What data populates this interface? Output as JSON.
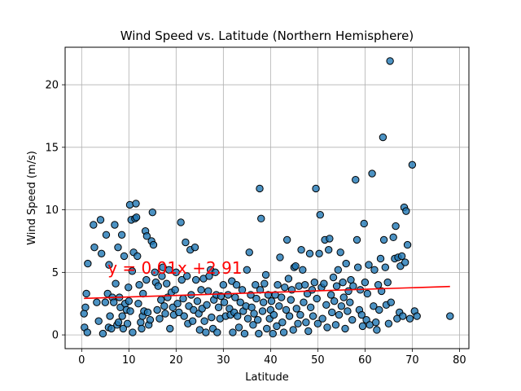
{
  "chart_data": {
    "type": "scatter",
    "title": "Wind Speed vs. Latitude (Northern Hemisphere)",
    "xlabel": "Latitude",
    "ylabel": "Wind Speed (m/s)",
    "xlim": [
      -3.5,
      82
    ],
    "ylim": [
      -1.1,
      23.0
    ],
    "xticks": [
      0,
      10,
      20,
      30,
      40,
      50,
      60,
      70,
      80
    ],
    "yticks": [
      0,
      5,
      10,
      15,
      20
    ],
    "grid": true,
    "point_color": "#1f77b4",
    "point_edge_color": "#000000",
    "regression": {
      "label": "y = 0.01x +2.91",
      "slope": 0.0123,
      "intercept": 2.91,
      "x_range": [
        0.5,
        78
      ],
      "color": "#ff0000",
      "label_anchor": [
        5.5,
        4.9
      ]
    },
    "points": [
      [
        0.5,
        1.7
      ],
      [
        0.6,
        0.6
      ],
      [
        0.8,
        2.2
      ],
      [
        1.0,
        3.3
      ],
      [
        1.2,
        0.2
      ],
      [
        1.3,
        5.7
      ],
      [
        2.5,
        8.8
      ],
      [
        2.7,
        7.0
      ],
      [
        3.2,
        2.6
      ],
      [
        3.6,
        1.1
      ],
      [
        4.0,
        9.2
      ],
      [
        4.2,
        6.5
      ],
      [
        4.5,
        0.1
      ],
      [
        5.0,
        2.6
      ],
      [
        5.2,
        8.0
      ],
      [
        5.5,
        3.3
      ],
      [
        5.7,
        0.6
      ],
      [
        5.8,
        5.6
      ],
      [
        6.0,
        1.5
      ],
      [
        6.3,
        0.5
      ],
      [
        6.5,
        3.0
      ],
      [
        6.8,
        2.6
      ],
      [
        7.0,
        8.8
      ],
      [
        7.2,
        4.1
      ],
      [
        7.5,
        0.8
      ],
      [
        7.7,
        7.0
      ],
      [
        7.8,
        1.0
      ],
      [
        8.0,
        3.0
      ],
      [
        8.2,
        2.2
      ],
      [
        8.5,
        8.0
      ],
      [
        8.6,
        1.5
      ],
      [
        8.8,
        0.5
      ],
      [
        9.0,
        6.3
      ],
      [
        9.2,
        2.5
      ],
      [
        9.5,
        2.0
      ],
      [
        9.7,
        0.9
      ],
      [
        9.9,
        3.8
      ],
      [
        10.0,
        2.7
      ],
      [
        10.2,
        10.4
      ],
      [
        10.3,
        1.9
      ],
      [
        10.5,
        9.2
      ],
      [
        10.7,
        5.1
      ],
      [
        10.8,
        0.2
      ],
      [
        11.0,
        6.6
      ],
      [
        11.3,
        9.3
      ],
      [
        11.5,
        10.5
      ],
      [
        11.6,
        9.4
      ],
      [
        11.8,
        6.3
      ],
      [
        12.0,
        2.5
      ],
      [
        12.2,
        4.0
      ],
      [
        12.5,
        1.0
      ],
      [
        12.7,
        0.5
      ],
      [
        12.9,
        1.5
      ],
      [
        13.0,
        3.3
      ],
      [
        13.2,
        1.9
      ],
      [
        13.5,
        8.3
      ],
      [
        13.7,
        4.4
      ],
      [
        13.8,
        7.9
      ],
      [
        14.0,
        1.8
      ],
      [
        14.2,
        0.8
      ],
      [
        14.5,
        1.2
      ],
      [
        14.8,
        7.5
      ],
      [
        15.0,
        9.8
      ],
      [
        15.2,
        7.2
      ],
      [
        15.5,
        5.0
      ],
      [
        15.7,
        4.2
      ],
      [
        16.0,
        2.0
      ],
      [
        16.2,
        3.9
      ],
      [
        16.5,
        1.3
      ],
      [
        16.8,
        2.8
      ],
      [
        17.0,
        4.7
      ],
      [
        17.2,
        5.4
      ],
      [
        17.5,
        2.3
      ],
      [
        17.7,
        1.7
      ],
      [
        18.0,
        4.1
      ],
      [
        18.2,
        3.0
      ],
      [
        18.5,
        5.2
      ],
      [
        18.7,
        0.5
      ],
      [
        19.0,
        3.4
      ],
      [
        19.3,
        2.2
      ],
      [
        19.5,
        1.6
      ],
      [
        19.8,
        3.6
      ],
      [
        20.0,
        5.0
      ],
      [
        20.3,
        2.5
      ],
      [
        20.6,
        1.8
      ],
      [
        21.0,
        9.0
      ],
      [
        21.2,
        4.4
      ],
      [
        21.5,
        2.9
      ],
      [
        21.7,
        1.5
      ],
      [
        22.0,
        7.4
      ],
      [
        22.3,
        4.7
      ],
      [
        22.5,
        0.9
      ],
      [
        22.7,
        2.3
      ],
      [
        23.0,
        6.8
      ],
      [
        23.2,
        3.2
      ],
      [
        23.5,
        1.1
      ],
      [
        23.7,
        2.0
      ],
      [
        24.0,
        7.0
      ],
      [
        24.2,
        4.4
      ],
      [
        24.5,
        2.7
      ],
      [
        24.8,
        1.7
      ],
      [
        25.0,
        0.4
      ],
      [
        25.3,
        3.6
      ],
      [
        25.5,
        2.1
      ],
      [
        25.8,
        4.5
      ],
      [
        26.0,
        1.1
      ],
      [
        26.3,
        0.2
      ],
      [
        26.5,
        2.4
      ],
      [
        26.8,
        3.5
      ],
      [
        27.0,
        4.7
      ],
      [
        27.3,
        5.2
      ],
      [
        27.5,
        1.4
      ],
      [
        27.8,
        0.5
      ],
      [
        28.0,
        2.8
      ],
      [
        28.3,
        5.0
      ],
      [
        28.5,
        3.2
      ],
      [
        28.7,
        0.2
      ],
      [
        29.0,
        2.2
      ],
      [
        29.3,
        1.3
      ],
      [
        29.5,
        3.1
      ],
      [
        30.0,
        4.0
      ],
      [
        30.2,
        2.6
      ],
      [
        30.5,
        1.5
      ],
      [
        31.0,
        3.2
      ],
      [
        31.3,
        2.1
      ],
      [
        31.5,
        1.6
      ],
      [
        31.8,
        4.3
      ],
      [
        32.0,
        0.2
      ],
      [
        32.3,
        1.8
      ],
      [
        32.5,
        3.0
      ],
      [
        32.8,
        4.0
      ],
      [
        33.0,
        1.5
      ],
      [
        33.3,
        0.6
      ],
      [
        33.6,
        2.6
      ],
      [
        34.0,
        3.6
      ],
      [
        34.2,
        1.9
      ],
      [
        34.5,
        0.1
      ],
      [
        34.8,
        2.3
      ],
      [
        35.0,
        5.2
      ],
      [
        35.2,
        1.3
      ],
      [
        35.5,
        6.6
      ],
      [
        35.8,
        3.2
      ],
      [
        36.0,
        2.2
      ],
      [
        36.3,
        0.8
      ],
      [
        36.5,
        1.7
      ],
      [
        36.8,
        4.0
      ],
      [
        37.0,
        2.9
      ],
      [
        37.3,
        1.2
      ],
      [
        37.5,
        0.1
      ],
      [
        37.7,
        11.7
      ],
      [
        37.8,
        3.6
      ],
      [
        38.0,
        9.3
      ],
      [
        38.3,
        1.9
      ],
      [
        38.5,
        2.6
      ],
      [
        38.7,
        4.1
      ],
      [
        39.0,
        4.8
      ],
      [
        39.2,
        0.5
      ],
      [
        39.5,
        3.2
      ],
      [
        39.8,
        1.3
      ],
      [
        40.0,
        2.0
      ],
      [
        40.2,
        2.7
      ],
      [
        40.5,
        0.1
      ],
      [
        40.7,
        1.6
      ],
      [
        41.0,
        3.2
      ],
      [
        41.3,
        0.7
      ],
      [
        41.5,
        4.0
      ],
      [
        41.8,
        2.3
      ],
      [
        42.0,
        6.2
      ],
      [
        42.3,
        3.0
      ],
      [
        42.5,
        1.0
      ],
      [
        42.8,
        0.2
      ],
      [
        43.0,
        3.8
      ],
      [
        43.3,
        2.0
      ],
      [
        43.5,
        7.6
      ],
      [
        43.8,
        4.5
      ],
      [
        44.0,
        1.5
      ],
      [
        44.3,
        2.8
      ],
      [
        44.5,
        3.6
      ],
      [
        44.8,
        0.4
      ],
      [
        45.0,
        5.4
      ],
      [
        45.3,
        5.5
      ],
      [
        45.5,
        2.1
      ],
      [
        45.8,
        0.9
      ],
      [
        46.0,
        3.9
      ],
      [
        46.3,
        1.6
      ],
      [
        46.5,
        6.8
      ],
      [
        46.8,
        5.2
      ],
      [
        47.0,
        2.6
      ],
      [
        47.3,
        4.0
      ],
      [
        47.5,
        1.0
      ],
      [
        47.8,
        3.3
      ],
      [
        48.0,
        0.3
      ],
      [
        48.3,
        6.5
      ],
      [
        48.5,
        2.2
      ],
      [
        48.8,
        3.6
      ],
      [
        49.0,
        1.5
      ],
      [
        49.3,
        4.2
      ],
      [
        49.6,
        11.7
      ],
      [
        49.8,
        2.9
      ],
      [
        50.0,
        0.9
      ],
      [
        50.3,
        6.5
      ],
      [
        50.5,
        9.6
      ],
      [
        50.8,
        3.8
      ],
      [
        51.0,
        1.3
      ],
      [
        51.3,
        4.1
      ],
      [
        51.5,
        7.6
      ],
      [
        51.8,
        2.4
      ],
      [
        52.0,
        0.6
      ],
      [
        52.3,
        6.8
      ],
      [
        52.5,
        7.7
      ],
      [
        52.8,
        3.2
      ],
      [
        53.0,
        1.8
      ],
      [
        53.3,
        4.6
      ],
      [
        53.5,
        2.7
      ],
      [
        53.8,
        0.8
      ],
      [
        54.0,
        3.9
      ],
      [
        54.3,
        5.2
      ],
      [
        54.5,
        1.6
      ],
      [
        54.8,
        6.6
      ],
      [
        55.0,
        2.3
      ],
      [
        55.3,
        4.2
      ],
      [
        55.5,
        3.0
      ],
      [
        55.8,
        0.5
      ],
      [
        56.0,
        5.7
      ],
      [
        56.3,
        1.9
      ],
      [
        56.5,
        3.5
      ],
      [
        56.8,
        2.6
      ],
      [
        57.0,
        4.4
      ],
      [
        57.3,
        1.2
      ],
      [
        57.5,
        3.9
      ],
      [
        58.0,
        12.4
      ],
      [
        58.3,
        7.6
      ],
      [
        58.5,
        5.4
      ],
      [
        58.8,
        2.0
      ],
      [
        59.0,
        3.6
      ],
      [
        59.3,
        1.6
      ],
      [
        59.5,
        0.7
      ],
      [
        59.8,
        8.9
      ],
      [
        60.0,
        4.2
      ],
      [
        60.3,
        1.2
      ],
      [
        60.5,
        3.3
      ],
      [
        60.8,
        5.6
      ],
      [
        61.0,
        0.8
      ],
      [
        61.5,
        12.9
      ],
      [
        61.8,
        2.3
      ],
      [
        62.0,
        5.2
      ],
      [
        62.3,
        1.0
      ],
      [
        62.5,
        0.4
      ],
      [
        62.8,
        4.0
      ],
      [
        63.0,
        2.0
      ],
      [
        63.3,
        6.1
      ],
      [
        63.5,
        3.5
      ],
      [
        63.8,
        15.8
      ],
      [
        64.0,
        7.6
      ],
      [
        64.3,
        5.4
      ],
      [
        64.5,
        2.4
      ],
      [
        64.8,
        4.2
      ],
      [
        65.0,
        0.9
      ],
      [
        65.3,
        21.9
      ],
      [
        65.5,
        2.6
      ],
      [
        66.0,
        7.8
      ],
      [
        66.3,
        6.1
      ],
      [
        66.5,
        8.7
      ],
      [
        66.8,
        1.3
      ],
      [
        67.0,
        6.2
      ],
      [
        67.3,
        1.8
      ],
      [
        67.5,
        5.5
      ],
      [
        67.8,
        6.3
      ],
      [
        68.0,
        1.5
      ],
      [
        68.3,
        10.2
      ],
      [
        68.5,
        5.8
      ],
      [
        68.7,
        9.9
      ],
      [
        69.0,
        7.2
      ],
      [
        69.5,
        1.3
      ],
      [
        70.0,
        13.6
      ],
      [
        70.5,
        1.9
      ],
      [
        71.0,
        1.5
      ],
      [
        78.0,
        1.5
      ]
    ]
  }
}
